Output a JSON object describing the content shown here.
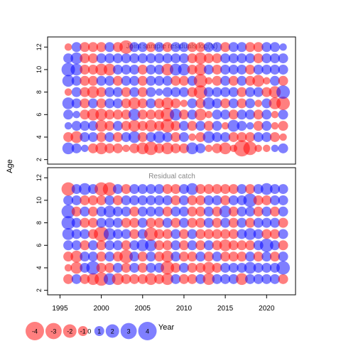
{
  "chart_data": {
    "type": "scatter",
    "x_label": "Year",
    "y_label": "Age",
    "x_ticks": [
      1995,
      2000,
      2005,
      2010,
      2015,
      2020
    ],
    "y_ticks": [
      2,
      4,
      6,
      8,
      10,
      12
    ],
    "x_range": [
      1993.5,
      2023.5
    ],
    "y_range": [
      1.6,
      12.9
    ],
    "colors": {
      "positive": "#0000ff",
      "negative": "#ff0000",
      "panel_positive": "#5b5bff",
      "panel_negative": "#ff5b5b"
    },
    "panels": [
      {
        "title": "Joint sample residuals log(N)",
        "years": [
          1996,
          1997,
          1998,
          1999,
          2000,
          2001,
          2002,
          2003,
          2004,
          2005,
          2006,
          2007,
          2008,
          2009,
          2010,
          2011,
          2012,
          2013,
          2014,
          2015,
          2016,
          2017,
          2018,
          2019,
          2020,
          2021,
          2022
        ],
        "ages": [
          3,
          4,
          5,
          6,
          7,
          8,
          9,
          10,
          11,
          12
        ],
        "residuals_by_age": [
          [
            1.5,
            1.0,
            0.5,
            -1.0,
            -1.5,
            -1.0,
            -1.0,
            -0.5,
            -1.0,
            -1.5,
            -2.0,
            -1.0,
            -1.5,
            -1.0,
            -1.0,
            1.5,
            1.0,
            -0.5,
            -1.0,
            -1.5,
            -0.5,
            -3.0,
            -2.0,
            -0.5,
            -0.5,
            0.5,
            1.0
          ],
          [
            -1.0,
            -1.5,
            1.0,
            1.0,
            -1.0,
            1.0,
            -1.0,
            1.0,
            1.5,
            -1.0,
            1.0,
            1.5,
            1.0,
            -1.0,
            1.0,
            -0.5,
            -1.0,
            1.5,
            1.0,
            1.0,
            -1.0,
            -1.0,
            -1.0,
            1.0,
            1.0,
            -1.0,
            -0.5
          ],
          [
            0.5,
            1.0,
            1.0,
            1.0,
            -1.5,
            -1.0,
            1.0,
            -1.0,
            -1.5,
            -1.0,
            -1.5,
            -1.0,
            -2.0,
            -1.0,
            1.0,
            -1.0,
            1.0,
            -1.0,
            1.0,
            -0.5,
            1.5,
            1.0,
            0.5,
            -1.0,
            1.0,
            -0.5,
            -1.0
          ],
          [
            1.0,
            0.5,
            -1.0,
            -1.5,
            -1.5,
            -1.0,
            -1.0,
            -1.0,
            1.5,
            -1.0,
            -1.0,
            -1.0,
            -2.0,
            1.5,
            -1.0,
            1.0,
            -1.5,
            -0.5,
            1.0,
            1.0,
            -1.0,
            1.0,
            1.0,
            -1.0,
            1.0,
            -0.5,
            1.0
          ],
          [
            1.5,
            1.0,
            -1.0,
            1.0,
            -1.0,
            1.0,
            1.0,
            -1.0,
            -1.5,
            -1.0,
            1.0,
            -1.0,
            -1.5,
            -1.0,
            -0.5,
            1.0,
            -1.0,
            1.5,
            1.0,
            -1.0,
            1.0,
            -1.0,
            1.0,
            -0.5,
            1.0,
            -1.5,
            -2.0
          ],
          [
            -0.5,
            1.0,
            -1.0,
            -1.5,
            -1.0,
            1.0,
            1.0,
            -1.0,
            1.0,
            -1.0,
            1.0,
            0.5,
            1.0,
            1.0,
            1.0,
            -1.0,
            -2.0,
            1.0,
            1.0,
            1.0,
            1.0,
            -1.0,
            1.0,
            1.0,
            -1.0,
            -1.5,
            2.0
          ],
          [
            1.5,
            1.0,
            -1.0,
            -1.0,
            1.0,
            1.0,
            -1.0,
            1.0,
            1.0,
            -1.0,
            1.0,
            1.0,
            1.0,
            -1.0,
            -1.0,
            1.0,
            -2.0,
            -0.5,
            -1.0,
            1.0,
            -1.0,
            1.0,
            -1.0,
            -1.5,
            -0.5,
            1.0,
            -1.0
          ],
          [
            2.0,
            1.5,
            -1.0,
            -1.0,
            -1.5,
            -1.5,
            1.0,
            1.0,
            1.0,
            -1.0,
            1.0,
            1.0,
            -1.5,
            1.5,
            1.5,
            -1.0,
            -1.5,
            1.0,
            -1.0,
            1.0,
            1.0,
            1.0,
            -1.0,
            1.0,
            1.0,
            1.0,
            1.0
          ],
          [
            1.0,
            1.5,
            -1.0,
            -1.0,
            1.0,
            1.0,
            1.0,
            1.0,
            1.0,
            1.0,
            1.0,
            1.0,
            1.0,
            1.0,
            1.0,
            -1.0,
            -1.5,
            -1.0,
            -1.0,
            1.0,
            1.0,
            1.0,
            1.0,
            -1.0,
            1.0,
            1.0,
            1.0
          ],
          [
            -0.5,
            1.0,
            -1.0,
            -1.0,
            -1.0,
            1.0,
            -1.0,
            -2.0,
            1.0,
            1.0,
            -1.0,
            1.0,
            -1.0,
            1.0,
            1.0,
            -1.0,
            -1.0,
            1.0,
            1.0,
            -1.0,
            1.0,
            1.0,
            -1.0,
            -1.0,
            1.0,
            1.0,
            0.5
          ]
        ]
      },
      {
        "title": "Residual catch",
        "years": [
          1996,
          1997,
          1998,
          1999,
          2000,
          2001,
          2002,
          2003,
          2004,
          2005,
          2006,
          2007,
          2008,
          2009,
          2010,
          2011,
          2012,
          2013,
          2014,
          2015,
          2016,
          2017,
          2018,
          2019,
          2020,
          2021,
          2022
        ],
        "ages": [
          3,
          4,
          5,
          6,
          7,
          8,
          9,
          10,
          11
        ],
        "residuals_by_age": [
          [
            -1.0,
            1.0,
            -1.0,
            -1.5,
            -2.0,
            1.5,
            -1.5,
            -1.0,
            -1.0,
            -1.0,
            -1.5,
            -1.0,
            -1.5,
            1.0,
            -1.0,
            -1.0,
            1.0,
            -1.5,
            1.0,
            1.0,
            1.0,
            -1.5,
            1.0,
            1.0,
            1.0,
            1.0,
            -1.0
          ],
          [
            -0.5,
            -1.5,
            1.0,
            2.0,
            -1.0,
            -1.0,
            1.0,
            -1.0,
            1.0,
            -1.0,
            1.0,
            1.0,
            -2.0,
            -1.0,
            1.0,
            -1.0,
            -1.0,
            -1.5,
            -1.0,
            1.0,
            1.0,
            1.0,
            1.5,
            1.0,
            1.0,
            1.0,
            2.0
          ],
          [
            -1.0,
            -1.5,
            1.0,
            1.0,
            -1.0,
            1.0,
            -1.0,
            -2.0,
            1.0,
            -1.0,
            1.0,
            -1.0,
            -1.5,
            1.0,
            -1.0,
            -1.0,
            1.0,
            -1.0,
            1.0,
            -1.0,
            -1.0,
            -1.0,
            1.0,
            -1.0,
            1.0,
            -1.0,
            1.0
          ],
          [
            1.0,
            1.0,
            -1.0,
            1.0,
            -1.0,
            1.0,
            1.0,
            -1.0,
            1.0,
            1.5,
            1.5,
            -1.0,
            -1.0,
            1.0,
            -1.0,
            1.0,
            -1.0,
            1.0,
            -1.0,
            -1.5,
            -1.0,
            -1.0,
            -1.0,
            1.0,
            2.0,
            1.0,
            -1.0
          ],
          [
            1.5,
            1.0,
            1.0,
            -1.0,
            -2.5,
            1.5,
            1.0,
            1.0,
            -1.0,
            1.0,
            -2.0,
            -1.0,
            -1.0,
            1.0,
            -1.0,
            1.0,
            -1.0,
            -1.0,
            -1.0,
            -1.0,
            -1.0,
            1.0,
            1.5,
            1.0,
            -1.0,
            -1.0,
            1.0
          ],
          [
            2.0,
            1.0,
            -1.0,
            -1.0,
            1.0,
            1.0,
            1.0,
            -1.0,
            -1.0,
            1.0,
            -1.0,
            -1.0,
            1.0,
            -1.0,
            1.0,
            -1.0,
            -1.0,
            1.0,
            -1.0,
            1.0,
            -1.0,
            1.0,
            -1.0,
            1.0,
            1.0,
            1.0,
            -1.0
          ],
          [
            2.0,
            -1.0,
            1.0,
            -1.0,
            1.0,
            1.5,
            1.0,
            1.0,
            -1.0,
            1.0,
            1.0,
            1.0,
            -1.0,
            1.0,
            1.0,
            -1.0,
            -1.0,
            1.0,
            -1.0,
            1.5,
            -1.0,
            1.0,
            1.0,
            -1.0,
            1.0,
            -1.0,
            1.0
          ],
          [
            1.0,
            1.0,
            -1.0,
            -1.0,
            -1.0,
            1.0,
            -1.0,
            1.0,
            1.0,
            1.0,
            1.0,
            1.0,
            1.0,
            -1.0,
            1.0,
            -1.0,
            -1.0,
            1.0,
            1.0,
            -1.0,
            1.0,
            1.0,
            2.0,
            -1.0,
            -1.0,
            1.0,
            1.0
          ],
          [
            -2.0,
            1.0,
            1.5,
            1.0,
            -2.0,
            -2.0,
            1.0,
            -1.0,
            1.0,
            1.0,
            1.0,
            1.0,
            -1.0,
            -1.0,
            1.0,
            1.5,
            -1.0,
            -1.0,
            -1.0,
            -1.0,
            -1.0,
            1.0,
            -1.0,
            1.0,
            1.5,
            1.0,
            1.0
          ]
        ]
      }
    ],
    "legend": {
      "placement": "bottom-left",
      "items": [
        {
          "label": "-4",
          "value": -4
        },
        {
          "label": "-3",
          "value": -3
        },
        {
          "label": "-2",
          "value": -2
        },
        {
          "label": "-1",
          "value": -1
        },
        {
          "label": "0",
          "value": 0
        },
        {
          "label": "1",
          "value": 1
        },
        {
          "label": "2",
          "value": 2
        },
        {
          "label": "3",
          "value": 3
        },
        {
          "label": "4",
          "value": 4
        }
      ]
    }
  }
}
